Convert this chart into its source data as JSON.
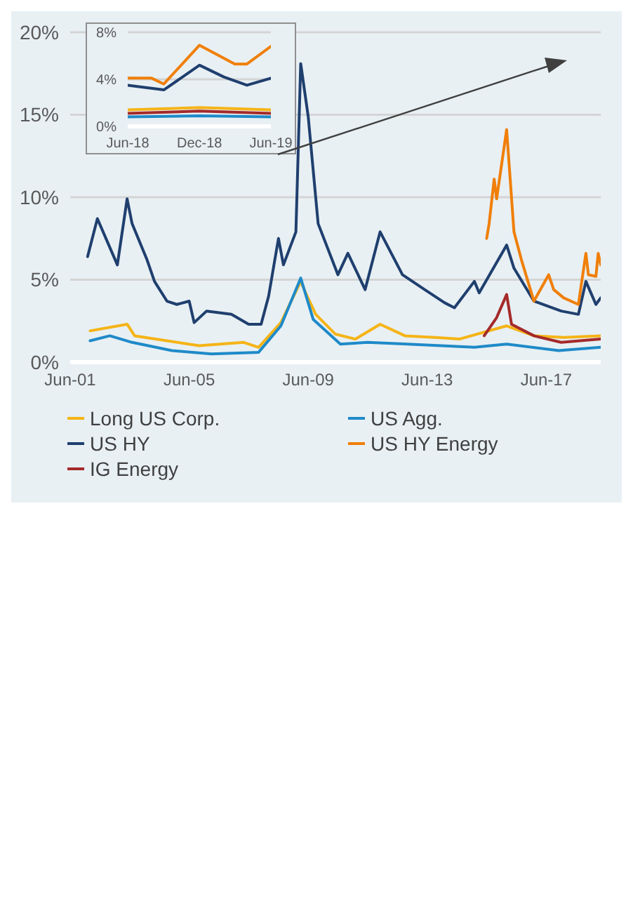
{
  "chart_data": [
    {
      "type": "line",
      "xlim": [
        "2001-06",
        "2019-04"
      ],
      "xticks": [
        {
          "value": "2001-06",
          "label": "Jun-01"
        },
        {
          "value": "2005-06",
          "label": "Jun-05"
        },
        {
          "value": "2009-06",
          "label": "Jun-09"
        },
        {
          "value": "2013-06",
          "label": "Jun-13"
        },
        {
          "value": "2017-06",
          "label": "Jun-17"
        }
      ],
      "ylim": [
        0,
        20
      ],
      "yticks": [
        {
          "value": 0,
          "label": "0%"
        },
        {
          "value": 5,
          "label": "5%"
        },
        {
          "value": 10,
          "label": "10%"
        },
        {
          "value": 15,
          "label": "15%"
        },
        {
          "value": 20,
          "label": "20%"
        }
      ],
      "grid": "y",
      "legend": "bottom",
      "series": [
        {
          "name": "Long US Corp.",
          "color": "#f5b417",
          "x": [
            "2002-02",
            "2003-05",
            "2003-08",
            "2004-09",
            "2005-10",
            "2007-04",
            "2007-10",
            "2008-07",
            "2009-03",
            "2009-05",
            "2009-09",
            "2010-05",
            "2011-01",
            "2011-11",
            "2012-09",
            "2013-09",
            "2014-07",
            "2016-02",
            "2017-01",
            "2018-01",
            "2019-04"
          ],
          "values": [
            1.9,
            2.3,
            1.6,
            1.3,
            1.0,
            1.2,
            0.9,
            2.4,
            4.9,
            4.2,
            2.9,
            1.7,
            1.4,
            2.3,
            1.6,
            1.5,
            1.4,
            2.2,
            1.6,
            1.5,
            1.6
          ]
        },
        {
          "name": "US Agg.",
          "color": "#1f8ac8",
          "x": [
            "2002-02",
            "2002-10",
            "2003-07",
            "2004-11",
            "2006-03",
            "2007-10",
            "2008-07",
            "2009-03",
            "2009-08",
            "2010-07",
            "2011-06",
            "2012-10",
            "2015-01",
            "2016-02",
            "2017-11",
            "2019-04"
          ],
          "values": [
            1.3,
            1.6,
            1.2,
            0.7,
            0.5,
            0.6,
            2.2,
            5.1,
            2.6,
            1.1,
            1.2,
            1.1,
            0.9,
            1.1,
            0.7,
            0.9
          ]
        },
        {
          "name": "US HY",
          "color": "#1f3f6e",
          "x": [
            "2002-01",
            "2002-05",
            "2003-01",
            "2003-05",
            "2003-07",
            "2004-01",
            "2004-04",
            "2004-09",
            "2005-01",
            "2005-06",
            "2005-08",
            "2006-01",
            "2006-11",
            "2007-06",
            "2007-11",
            "2008-02",
            "2008-06",
            "2008-08",
            "2009-01",
            "2009-03",
            "2009-06",
            "2009-10",
            "2010-06",
            "2010-10",
            "2011-05",
            "2011-11",
            "2012-08",
            "2013-05",
            "2014-01",
            "2014-05",
            "2015-01",
            "2015-03",
            "2016-02",
            "2016-05",
            "2017-01",
            "2017-12",
            "2018-07",
            "2018-10",
            "2019-02",
            "2019-04"
          ],
          "values": [
            6.4,
            8.7,
            5.9,
            9.9,
            8.4,
            6.2,
            4.9,
            3.7,
            3.5,
            3.7,
            2.4,
            3.1,
            2.9,
            2.3,
            2.3,
            4.0,
            7.5,
            5.9,
            7.9,
            18.1,
            14.9,
            8.4,
            5.3,
            6.6,
            4.4,
            7.9,
            5.3,
            4.4,
            3.6,
            3.3,
            4.9,
            4.2,
            7.1,
            5.7,
            3.7,
            3.1,
            2.9,
            4.9,
            3.5,
            3.9
          ]
        },
        {
          "name": "US HY Energy",
          "color": "#f07f09",
          "x": [
            "2015-06",
            "2015-07",
            "2015-09",
            "2015-10",
            "2016-02",
            "2016-05",
            "2016-08",
            "2017-01",
            "2017-07",
            "2017-09",
            "2018-01",
            "2018-07",
            "2018-10",
            "2018-11",
            "2019-02",
            "2019-03",
            "2019-04"
          ],
          "values": [
            7.5,
            8.4,
            11.1,
            9.9,
            14.1,
            7.9,
            6.2,
            3.7,
            5.3,
            4.4,
            3.9,
            3.5,
            6.6,
            5.3,
            5.2,
            6.6,
            5.9
          ]
        },
        {
          "name": "IG Energy",
          "color": "#a52a2a",
          "x": [
            "2015-05",
            "2015-10",
            "2016-02",
            "2016-04",
            "2017-01",
            "2017-12",
            "2019-04"
          ],
          "values": [
            1.6,
            2.7,
            4.1,
            2.3,
            1.6,
            1.2,
            1.4
          ]
        }
      ]
    },
    {
      "type": "line",
      "xlim": [
        "2018-06",
        "2019-06"
      ],
      "xticks": [
        {
          "value": "2018-06",
          "label": "Jun-18"
        },
        {
          "value": "2018-12",
          "label": "Dec-18"
        },
        {
          "value": "2019-06",
          "label": "Jun-19"
        }
      ],
      "ylim": [
        0,
        8
      ],
      "yticks": [
        {
          "value": 0,
          "label": "0%"
        },
        {
          "value": 4,
          "label": "4%"
        },
        {
          "value": 8,
          "label": "8%"
        }
      ],
      "grid": "y",
      "series": [
        {
          "color": "#f5b417",
          "x": [
            "2018-06",
            "2018-12",
            "2019-06"
          ],
          "values": [
            1.4,
            1.6,
            1.4
          ]
        },
        {
          "color": "#1f8ac8",
          "x": [
            "2018-06",
            "2018-12",
            "2019-06"
          ],
          "values": [
            0.8,
            0.9,
            0.8
          ]
        },
        {
          "color": "#1f3f6e",
          "x": [
            "2018-06",
            "2018-09",
            "2018-12",
            "2019-02",
            "2019-04",
            "2019-06"
          ],
          "values": [
            3.5,
            3.1,
            5.2,
            4.2,
            3.5,
            4.1
          ]
        },
        {
          "color": "#f07f09",
          "x": [
            "2018-06",
            "2018-08",
            "2018-09",
            "2018-12",
            "2019-03",
            "2019-04",
            "2019-06"
          ],
          "values": [
            4.1,
            4.1,
            3.6,
            6.9,
            5.3,
            5.3,
            6.8
          ]
        },
        {
          "color": "#a52a2a",
          "x": [
            "2018-06",
            "2018-12",
            "2019-06"
          ],
          "values": [
            1.1,
            1.3,
            1.1
          ]
        }
      ]
    }
  ]
}
